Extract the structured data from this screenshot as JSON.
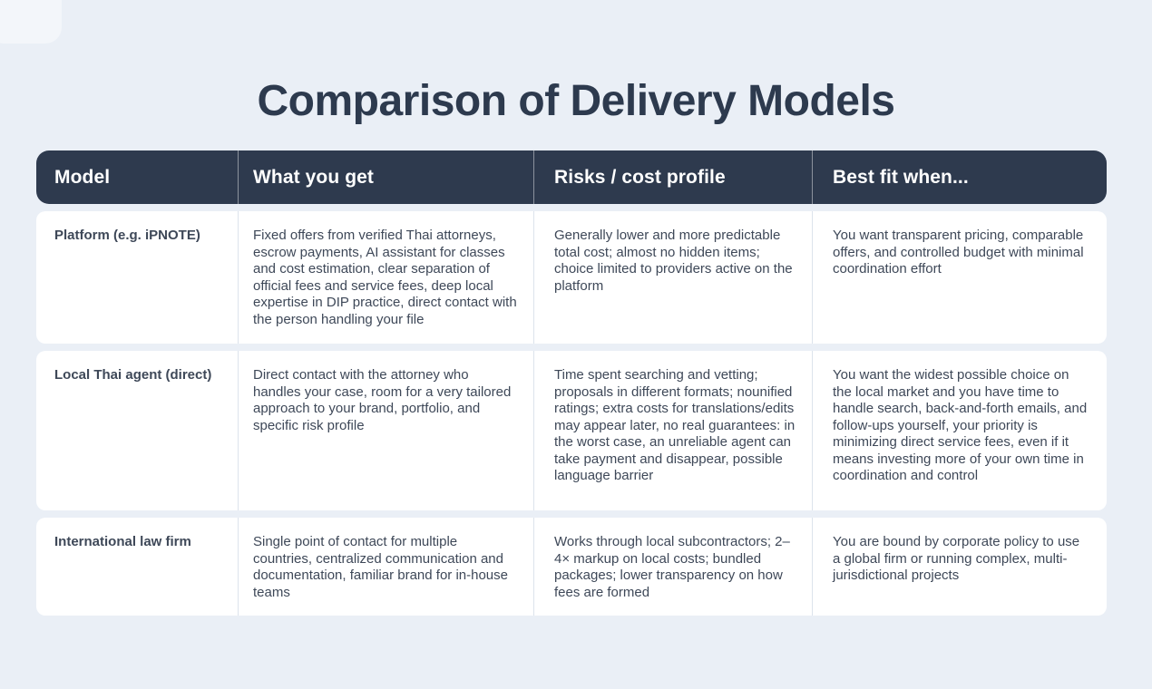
{
  "page": {
    "title": "Comparison of Delivery Models"
  },
  "colors": {
    "background": "#eaeff6",
    "header_bg": "#2e3a4e",
    "card_bg": "#ffffff",
    "title_text": "#2d3a4e",
    "body_text": "#3e4858",
    "divider": "#dce3ec"
  },
  "table": {
    "headers": [
      "Model",
      "What you get",
      "Risks / cost profile",
      "Best fit when..."
    ],
    "rows": [
      {
        "model": "Platform (e.g. iPNOTE)",
        "what_you_get": "Fixed offers from verified Thai attorneys, escrow payments, AI assistant for classes and cost estimation, clear separation of official fees and service fees, deep local expertise in DIP practice, direct contact with the person handling your file",
        "risks": "Generally lower and more predictable total cost; almost no hidden items; choice limited to providers active on the platform",
        "best_fit": "You want transparent pricing, comparable offers, and controlled budget with minimal coordination effort"
      },
      {
        "model": "Local Thai agent (direct)",
        "what_you_get": "Direct contact with the attorney who handles your case, room for a very tailored approach to your brand, portfolio, and specific risk profile",
        "risks": "Time spent searching and vetting; proposals in different formats; nounified ratings; extra costs for translations/edits may appear later, no real guarantees: in the worst case, an unreliable agent can take payment and disappear, possible language barrier",
        "best_fit": "You want the widest possible choice on the local market and you have time to handle search, back-and-forth emails, and follow-ups yourself, your priority is minimizing direct service fees, even if it means investing more of your own time in coordination and control"
      },
      {
        "model": "International law firm",
        "what_you_get": "Single point of contact for multiple countries, centralized communication and documentation, familiar brand for in-house teams",
        "risks": "Works through local subcontractors; 2–4× markup on local costs; bundled packages; lower transparency on how fees are formed",
        "best_fit": "You are bound by corporate policy to use a global firm or running complex, multi-jurisdictional projects"
      }
    ]
  }
}
